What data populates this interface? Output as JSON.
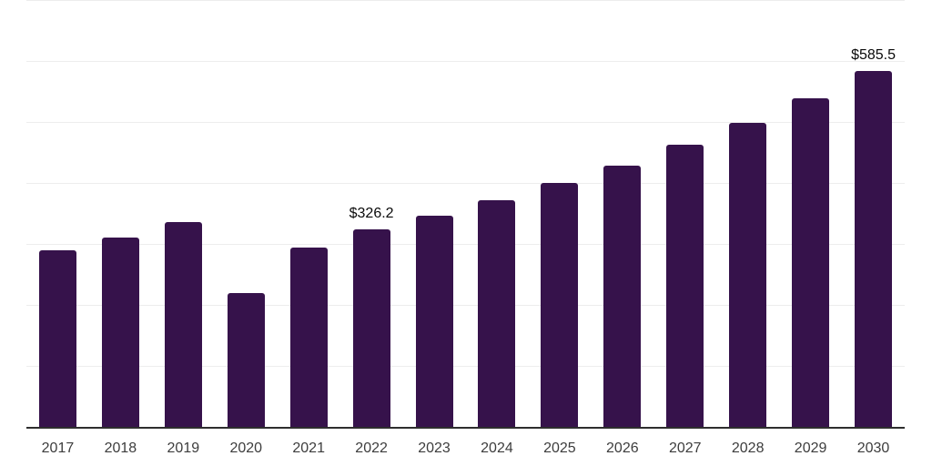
{
  "chart": {
    "background_color": "#ffffff",
    "bar_color": "#36124B",
    "grid_color": "#ededed",
    "axis_color": "#2e2e2e",
    "tick_label_color": "#3d3d3d",
    "data_label_color": "#0a0a0a"
  },
  "chart_data": {
    "type": "bar",
    "title": "",
    "xlabel": "",
    "ylabel": "",
    "categories": [
      "2017",
      "2018",
      "2019",
      "2020",
      "2021",
      "2022",
      "2023",
      "2024",
      "2025",
      "2026",
      "2027",
      "2028",
      "2029",
      "2030"
    ],
    "values": [
      291,
      312,
      337,
      221,
      296,
      326.2,
      348,
      373,
      402,
      430,
      464,
      501,
      541,
      585.5
    ],
    "data_labels": [
      null,
      null,
      null,
      null,
      null,
      "$326.2",
      null,
      null,
      null,
      null,
      null,
      null,
      null,
      "$585.5"
    ],
    "ylim": [
      0,
      700
    ],
    "gridline_values": [
      100,
      200,
      300,
      400,
      500,
      600,
      700
    ],
    "grid": true,
    "legend": "none",
    "y_axis_tick_labels_visible": false
  }
}
